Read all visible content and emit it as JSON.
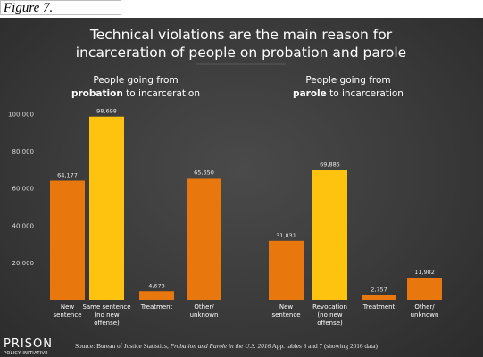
{
  "figure_label": "Figure 7.",
  "title_lines": [
    "Technical violations are the main reason for",
    "incarceration of people on probation and parole"
  ],
  "source": {
    "prefix": "Source: Bureau of Justice Statistics, ",
    "italic": "Probation and Parole in the U.S. 2016",
    "suffix": " App. tables 3 and 7 (showing 2016 data)"
  },
  "logo": {
    "main": "PRISON",
    "sub": "POLICY INITIATIVE"
  },
  "colors": {
    "orange": "#e8780e",
    "yellow": "#fdc30f",
    "background": "#3c3c3c"
  },
  "chart_data": [
    {
      "type": "bar",
      "title_lines": [
        {
          "pre": "People going from",
          "bold": "",
          "post": ""
        },
        {
          "pre": "",
          "bold": "probation",
          "post": " to incarceration"
        }
      ],
      "ylim": [
        0,
        100000
      ],
      "yticks": [
        "20,000",
        "40,000",
        "60,000",
        "80,000",
        "100,000"
      ],
      "categories": [
        [
          "New",
          "sentence"
        ],
        [
          "Same sentence",
          "(no new",
          "offense)"
        ],
        [
          "Treatment"
        ],
        [
          "Other/",
          "unknown"
        ]
      ],
      "values": [
        64177,
        98698,
        4678,
        65650
      ],
      "value_labels": [
        "64,177",
        "98,698",
        "4,678",
        "65,650"
      ],
      "highlight_index": 1
    },
    {
      "type": "bar",
      "title_lines": [
        {
          "pre": "People going from",
          "bold": "",
          "post": ""
        },
        {
          "pre": "",
          "bold": "parole",
          "post": " to incarceration"
        }
      ],
      "ylim": [
        0,
        100000
      ],
      "categories": [
        [
          "New",
          "sentence"
        ],
        [
          "Revocation",
          "(no new",
          "offense)"
        ],
        [
          "Treatment"
        ],
        [
          "Other/",
          "unknown"
        ]
      ],
      "values": [
        31831,
        69885,
        2757,
        11982
      ],
      "value_labels": [
        "31,831",
        "69,885",
        "2,757",
        "11,982"
      ],
      "highlight_index": 1
    }
  ]
}
